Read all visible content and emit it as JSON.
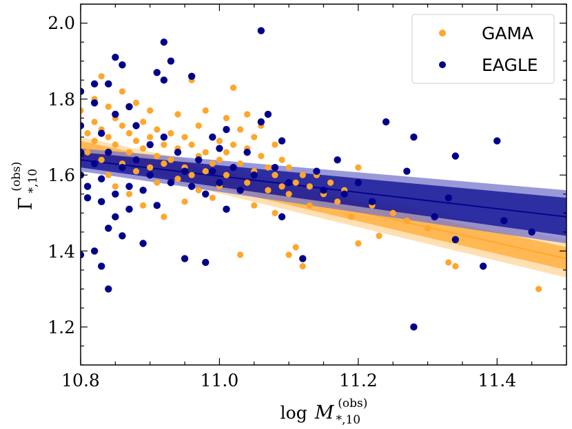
{
  "chart_data": {
    "type": "scatter",
    "xlabel": {
      "base": "log",
      "symbol": "M",
      "sub": "*,10",
      "sup": "(obs)"
    },
    "ylabel": {
      "symbol": "Γ",
      "sub": "*,10",
      "sup": "(obs)"
    },
    "xlim": [
      10.8,
      11.5
    ],
    "ylim": [
      1.1,
      2.05
    ],
    "xticks": [
      "10.8",
      "11.0",
      "11.2",
      "11.4"
    ],
    "xtick_values": [
      10.8,
      11.0,
      11.2,
      11.4
    ],
    "yticks": [
      "1.2",
      "1.4",
      "1.6",
      "1.8",
      "2.0"
    ],
    "ytick_values": [
      1.2,
      1.4,
      1.6,
      1.8,
      2.0
    ],
    "grid": false,
    "legend_position": "top-right",
    "series": [
      {
        "name": "GAMA",
        "color": "#ffa62b",
        "band_outer_color": "#ffd699",
        "fit_line": {
          "x": [
            10.8,
            11.5
          ],
          "y": [
            1.67,
            1.38
          ]
        },
        "band_inner": {
          "x": [
            10.8,
            11.5
          ],
          "y_low": [
            1.65,
            1.35
          ],
          "y_high": [
            1.69,
            1.41
          ]
        },
        "band_outer": {
          "x": [
            10.8,
            11.5
          ],
          "y_low": [
            1.64,
            1.33
          ],
          "y_high": [
            1.7,
            1.43
          ]
        },
        "points": [
          [
            10.8,
            1.77
          ],
          [
            10.81,
            1.71
          ],
          [
            10.81,
            1.66
          ],
          [
            10.82,
            1.8
          ],
          [
            10.82,
            1.74
          ],
          [
            10.82,
            1.69
          ],
          [
            10.83,
            1.86
          ],
          [
            10.83,
            1.72
          ],
          [
            10.83,
            1.64
          ],
          [
            10.84,
            1.78
          ],
          [
            10.84,
            1.7
          ],
          [
            10.84,
            1.6
          ],
          [
            10.85,
            1.75
          ],
          [
            10.85,
            1.68
          ],
          [
            10.85,
            1.57
          ],
          [
            10.86,
            1.82
          ],
          [
            10.86,
            1.73
          ],
          [
            10.86,
            1.63
          ],
          [
            10.87,
            1.71
          ],
          [
            10.87,
            1.66
          ],
          [
            10.87,
            1.55
          ],
          [
            10.88,
            1.79
          ],
          [
            10.88,
            1.69
          ],
          [
            10.88,
            1.61
          ],
          [
            10.89,
            1.74
          ],
          [
            10.89,
            1.67
          ],
          [
            10.89,
            1.52
          ],
          [
            10.9,
            1.77
          ],
          [
            10.9,
            1.7
          ],
          [
            10.9,
            1.62
          ],
          [
            10.91,
            1.72
          ],
          [
            10.91,
            1.65
          ],
          [
            10.91,
            1.58
          ],
          [
            10.92,
            1.68
          ],
          [
            10.92,
            1.63
          ],
          [
            10.92,
            1.49
          ],
          [
            10.93,
            1.71
          ],
          [
            10.93,
            1.64
          ],
          [
            10.94,
            1.76
          ],
          [
            10.94,
            1.67
          ],
          [
            10.94,
            1.59
          ],
          [
            10.95,
            1.7
          ],
          [
            10.95,
            1.62
          ],
          [
            10.95,
            1.53
          ],
          [
            10.96,
            1.85
          ],
          [
            10.96,
            1.68
          ],
          [
            10.96,
            1.6
          ],
          [
            10.97,
            1.73
          ],
          [
            10.97,
            1.65
          ],
          [
            10.97,
            1.56
          ],
          [
            10.98,
            1.77
          ],
          [
            10.98,
            1.66
          ],
          [
            10.98,
            1.61
          ],
          [
            10.99,
            1.7
          ],
          [
            10.99,
            1.63
          ],
          [
            10.99,
            1.54
          ],
          [
            11.0,
            1.69
          ],
          [
            11.0,
            1.64
          ],
          [
            11.0,
            1.57
          ],
          [
            11.01,
            1.75
          ],
          [
            11.01,
            1.66
          ],
          [
            11.01,
            1.6
          ],
          [
            11.02,
            1.83
          ],
          [
            11.02,
            1.68
          ],
          [
            11.02,
            1.62
          ],
          [
            11.03,
            1.72
          ],
          [
            11.03,
            1.63
          ],
          [
            11.03,
            1.39
          ],
          [
            11.04,
            1.76
          ],
          [
            11.04,
            1.67
          ],
          [
            11.04,
            1.58
          ],
          [
            11.05,
            1.7
          ],
          [
            11.05,
            1.61
          ],
          [
            11.05,
            1.52
          ],
          [
            11.06,
            1.73
          ],
          [
            11.06,
            1.65
          ],
          [
            11.07,
            1.62
          ],
          [
            11.07,
            1.56
          ],
          [
            11.08,
            1.68
          ],
          [
            11.08,
            1.6
          ],
          [
            11.08,
            1.5
          ],
          [
            11.09,
            1.64
          ],
          [
            11.09,
            1.57
          ],
          [
            11.1,
            1.62
          ],
          [
            11.1,
            1.55
          ],
          [
            11.1,
            1.39
          ],
          [
            11.11,
            1.41
          ],
          [
            11.11,
            1.58
          ],
          [
            11.12,
            1.6
          ],
          [
            11.12,
            1.36
          ],
          [
            11.13,
            1.57
          ],
          [
            11.13,
            1.52
          ],
          [
            11.14,
            1.6
          ],
          [
            11.15,
            1.55
          ],
          [
            11.16,
            1.58
          ],
          [
            11.17,
            1.53
          ],
          [
            11.18,
            1.56
          ],
          [
            11.19,
            1.49
          ],
          [
            11.2,
            1.62
          ],
          [
            11.2,
            1.42
          ],
          [
            11.22,
            1.52
          ],
          [
            11.23,
            1.44
          ],
          [
            11.25,
            1.5
          ],
          [
            11.27,
            1.48
          ],
          [
            11.3,
            1.46
          ],
          [
            11.33,
            1.37
          ],
          [
            11.34,
            1.36
          ],
          [
            11.46,
            1.3
          ]
        ]
      },
      {
        "name": "EAGLE",
        "color": "#00008b",
        "band_outer_color": "#7777cc",
        "fit_line": {
          "x": [
            10.8,
            11.5
          ],
          "y": [
            1.64,
            1.49
          ]
        },
        "band_inner": {
          "x": [
            10.8,
            11.5
          ],
          "y_low": [
            1.62,
            1.44
          ],
          "y_high": [
            1.66,
            1.54
          ]
        },
        "band_outer": {
          "x": [
            10.8,
            11.5
          ],
          "y_low": [
            1.61,
            1.42
          ],
          "y_high": [
            1.67,
            1.56
          ]
        },
        "points": [
          [
            10.8,
            1.82
          ],
          [
            10.8,
            1.73
          ],
          [
            10.8,
            1.66
          ],
          [
            10.8,
            1.6
          ],
          [
            10.8,
            1.39
          ],
          [
            10.81,
            1.54
          ],
          [
            10.81,
            1.57
          ],
          [
            10.82,
            1.79
          ],
          [
            10.82,
            1.84
          ],
          [
            10.82,
            1.4
          ],
          [
            10.82,
            1.63
          ],
          [
            10.83,
            1.59
          ],
          [
            10.83,
            1.36
          ],
          [
            10.83,
            1.71
          ],
          [
            10.83,
            1.53
          ],
          [
            10.84,
            1.84
          ],
          [
            10.84,
            1.46
          ],
          [
            10.84,
            1.3
          ],
          [
            10.84,
            1.66
          ],
          [
            10.85,
            1.55
          ],
          [
            10.85,
            1.49
          ],
          [
            10.85,
            1.76
          ],
          [
            10.85,
            1.91
          ],
          [
            10.86,
            1.89
          ],
          [
            10.86,
            1.44
          ],
          [
            10.86,
            1.62
          ],
          [
            10.87,
            1.78
          ],
          [
            10.87,
            1.57
          ],
          [
            10.87,
            1.51
          ],
          [
            10.88,
            1.73
          ],
          [
            10.88,
            1.64
          ],
          [
            10.89,
            1.56
          ],
          [
            10.89,
            1.42
          ],
          [
            10.9,
            1.6
          ],
          [
            10.9,
            1.68
          ],
          [
            10.91,
            1.87
          ],
          [
            10.91,
            1.52
          ],
          [
            10.92,
            1.95
          ],
          [
            10.92,
            1.85
          ],
          [
            10.92,
            1.7
          ],
          [
            10.93,
            1.9
          ],
          [
            10.93,
            1.58
          ],
          [
            10.94,
            1.66
          ],
          [
            10.95,
            1.61
          ],
          [
            10.95,
            1.38
          ],
          [
            10.96,
            1.86
          ],
          [
            10.96,
            1.57
          ],
          [
            10.97,
            1.64
          ],
          [
            10.98,
            1.55
          ],
          [
            10.98,
            1.37
          ],
          [
            10.99,
            1.7
          ],
          [
            10.99,
            1.61
          ],
          [
            11.0,
            1.67
          ],
          [
            11.0,
            1.58
          ],
          [
            11.01,
            1.72
          ],
          [
            11.01,
            1.51
          ],
          [
            11.02,
            1.62
          ],
          [
            11.03,
            1.56
          ],
          [
            11.04,
            1.66
          ],
          [
            11.05,
            1.6
          ],
          [
            11.06,
            1.98
          ],
          [
            11.06,
            1.74
          ],
          [
            11.07,
            1.76
          ],
          [
            11.08,
            1.62
          ],
          [
            11.09,
            1.69
          ],
          [
            11.09,
            1.49
          ],
          [
            11.1,
            1.58
          ],
          [
            11.12,
            1.38
          ],
          [
            11.14,
            1.61
          ],
          [
            11.15,
            1.56
          ],
          [
            11.17,
            1.64
          ],
          [
            11.18,
            1.55
          ],
          [
            11.2,
            1.58
          ],
          [
            11.22,
            1.53
          ],
          [
            11.24,
            1.74
          ],
          [
            11.27,
            1.61
          ],
          [
            11.28,
            1.7
          ],
          [
            11.28,
            1.2
          ],
          [
            11.31,
            1.49
          ],
          [
            11.33,
            1.54
          ],
          [
            11.34,
            1.65
          ],
          [
            11.34,
            1.43
          ],
          [
            11.38,
            1.36
          ],
          [
            11.4,
            1.69
          ],
          [
            11.41,
            1.48
          ],
          [
            11.45,
            1.45
          ]
        ]
      }
    ]
  }
}
